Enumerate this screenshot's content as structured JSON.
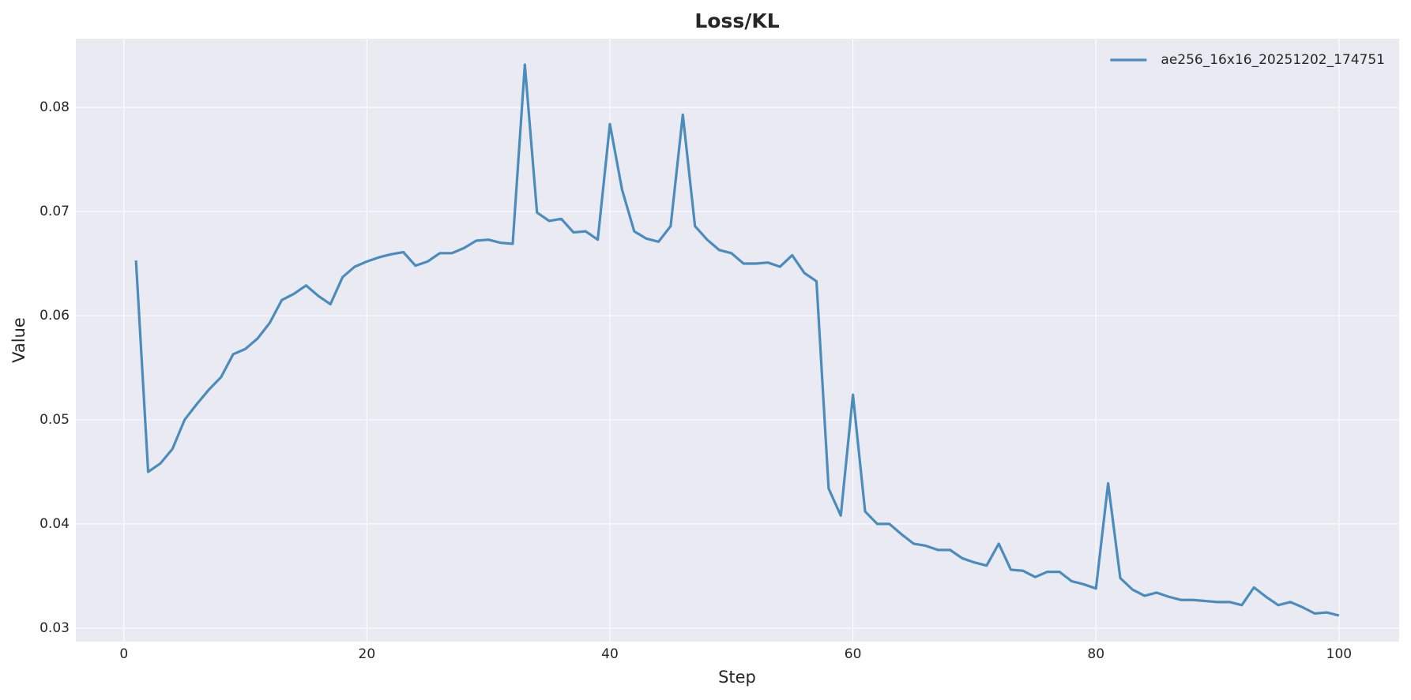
{
  "chart_data": {
    "type": "line",
    "title": "Loss/KL",
    "xlabel": "Step",
    "ylabel": "Value",
    "x": [
      1,
      2,
      3,
      4,
      5,
      6,
      7,
      8,
      9,
      10,
      11,
      12,
      13,
      14,
      15,
      16,
      17,
      18,
      19,
      20,
      21,
      22,
      23,
      24,
      25,
      26,
      27,
      28,
      29,
      30,
      31,
      32,
      33,
      34,
      35,
      36,
      37,
      38,
      39,
      40,
      41,
      42,
      43,
      44,
      45,
      46,
      47,
      48,
      49,
      50,
      51,
      52,
      53,
      54,
      55,
      56,
      57,
      58,
      59,
      60,
      61,
      62,
      63,
      64,
      65,
      66,
      67,
      68,
      69,
      70,
      71,
      72,
      73,
      74,
      75,
      76,
      77,
      78,
      79,
      80,
      81,
      82,
      83,
      84,
      85,
      86,
      87,
      88,
      89,
      90,
      91,
      92,
      93,
      94,
      95,
      96,
      97,
      98,
      99,
      100
    ],
    "series": [
      {
        "name": "ae256_16x16_20251202_174751",
        "color": "#4a8cbc",
        "values": [
          0.0653,
          0.045,
          0.0458,
          0.0472,
          0.05,
          0.0515,
          0.0529,
          0.0541,
          0.0563,
          0.0568,
          0.0578,
          0.0593,
          0.0615,
          0.0621,
          0.0629,
          0.0619,
          0.0611,
          0.0637,
          0.0647,
          0.0652,
          0.0656,
          0.0659,
          0.0661,
          0.0648,
          0.0652,
          0.066,
          0.066,
          0.0665,
          0.0672,
          0.0673,
          0.067,
          0.0669,
          0.0841,
          0.0699,
          0.0691,
          0.0693,
          0.068,
          0.0681,
          0.0673,
          0.0784,
          0.0721,
          0.0681,
          0.0674,
          0.0671,
          0.0686,
          0.0793,
          0.0686,
          0.0673,
          0.0663,
          0.066,
          0.065,
          0.065,
          0.0651,
          0.0647,
          0.0658,
          0.0641,
          0.0633,
          0.0434,
          0.0408,
          0.0524,
          0.0412,
          0.04,
          0.04,
          0.039,
          0.0381,
          0.0379,
          0.0375,
          0.0375,
          0.0367,
          0.0363,
          0.036,
          0.0381,
          0.0356,
          0.0355,
          0.0349,
          0.0354,
          0.0354,
          0.0345,
          0.0342,
          0.0338,
          0.0439,
          0.0348,
          0.0337,
          0.0331,
          0.0334,
          0.033,
          0.0327,
          0.0327,
          0.0326,
          0.0325,
          0.0325,
          0.0322,
          0.0339,
          0.033,
          0.0322,
          0.0325,
          0.032,
          0.0314,
          0.0315,
          0.0312
        ]
      }
    ],
    "xlim": [
      -3.95,
      104.95
    ],
    "ylim": [
      0.0287,
      0.0866
    ],
    "xticks": [
      0,
      20,
      40,
      60,
      80,
      100
    ],
    "yticks": [
      0.03,
      0.04,
      0.05,
      0.06,
      0.07,
      0.08
    ],
    "grid": true,
    "legend": "upper right"
  }
}
